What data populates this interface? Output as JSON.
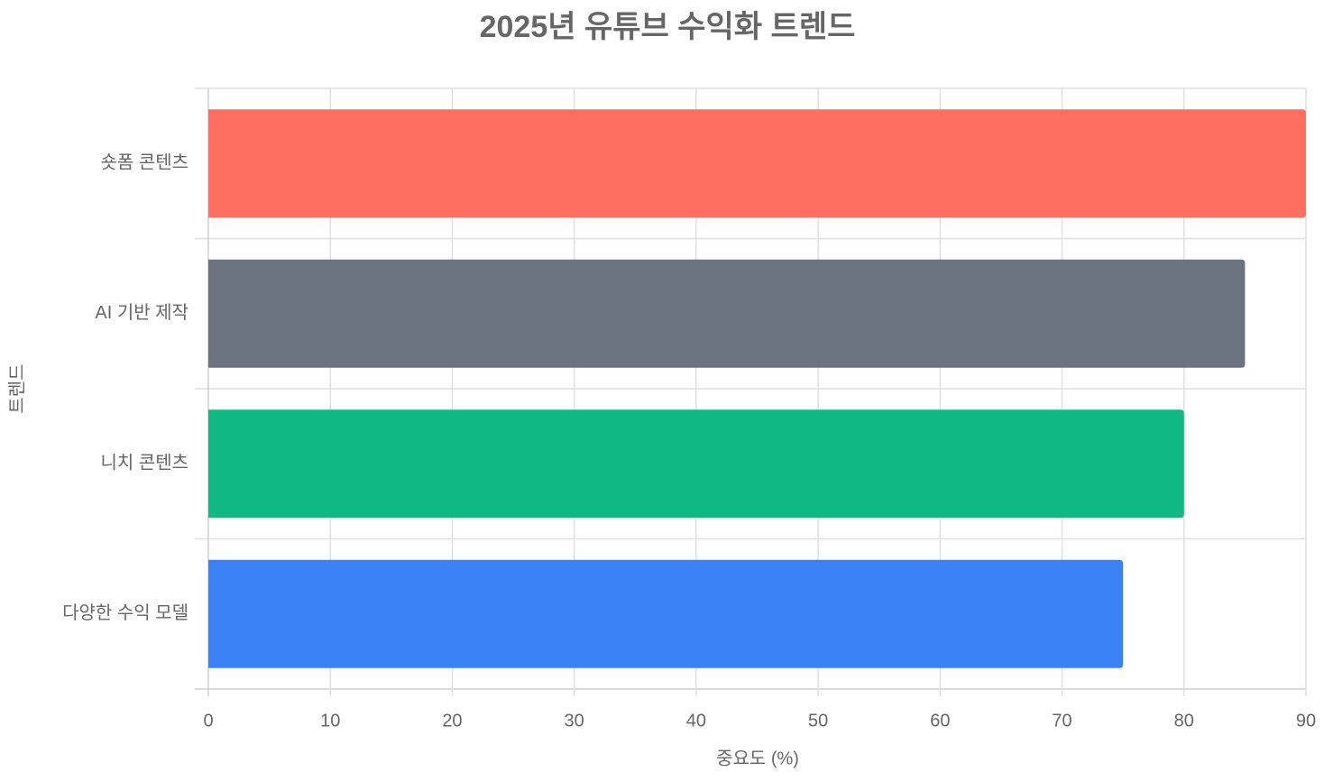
{
  "chart_data": {
    "type": "horizontal-bar",
    "title": "2025년 유튜브 수익화 트렌드",
    "x_label": "중요도 (%)",
    "y_label": "트렌드",
    "categories": [
      "숏폼 콘텐츠",
      "AI 기반 제작",
      "니치 콘텐츠",
      "다양한 수익 모델"
    ],
    "values": [
      90,
      85,
      80,
      75
    ],
    "colors": [
      "#ff6f61",
      "#6b7280",
      "#10b981",
      "#3b82f6"
    ],
    "xlim": [
      0,
      90
    ],
    "xticks": [
      0,
      10,
      20,
      30,
      40,
      50,
      60,
      70,
      80,
      90
    ],
    "grid": true
  }
}
